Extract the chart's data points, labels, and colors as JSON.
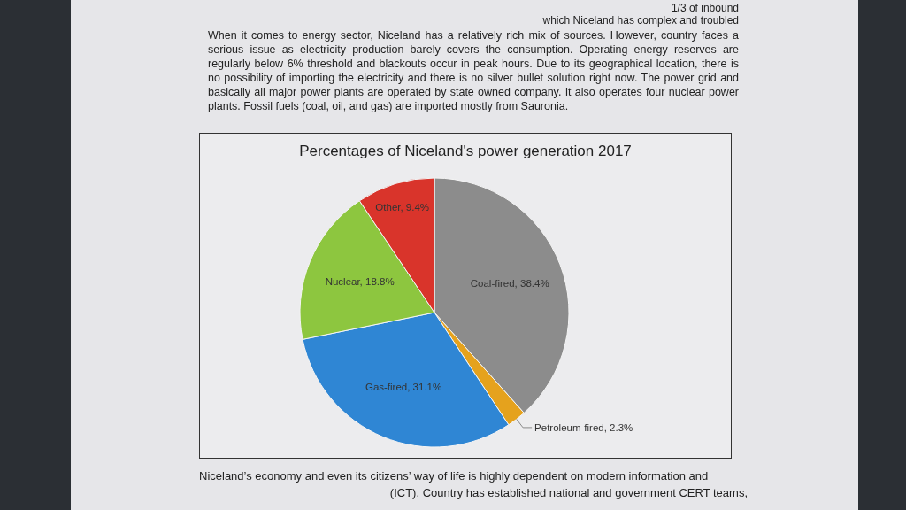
{
  "chart_data": {
    "type": "pie",
    "title": "Percentages of Niceland's power generation 2017",
    "categories": [
      "Coal-fired",
      "Petroleum-fired",
      "Gas-fired",
      "Nuclear",
      "Other"
    ],
    "values": [
      38.4,
      2.3,
      31.1,
      18.8,
      9.4
    ],
    "colors": [
      "#8c8c8c",
      "#e5a21d",
      "#2f86d4",
      "#8dc63f",
      "#d9342b"
    ],
    "value_labels": [
      "38.4%",
      "2.3%",
      "31.1%",
      "18.8%",
      "9.4%"
    ],
    "annotations": [
      "1/3 of inbound",
      "which Niceland has complex and troubled",
      "When it comes to energy sector, Niceland has a relatively rich mix of sources. However, country faces a serious issue as electricity production barely covers the consumption. Operating energy reserves are regularly below 6% threshold and blackouts occur in peak hours. Due to its geographical location, there is no possibility of importing the electricity and there is no silver bullet solution right now. The power grid and basically all major power plants are operated by state owned company. It also operates four nuclear power plants. Fossil fuels (coal, oil, and gas) are imported mostly from Sauronia.",
      "Niceland’s economy and even its citizens’ way of life is highly dependent on modern information and",
      "(ICT). Country has established national and government CERT teams,"
    ]
  }
}
